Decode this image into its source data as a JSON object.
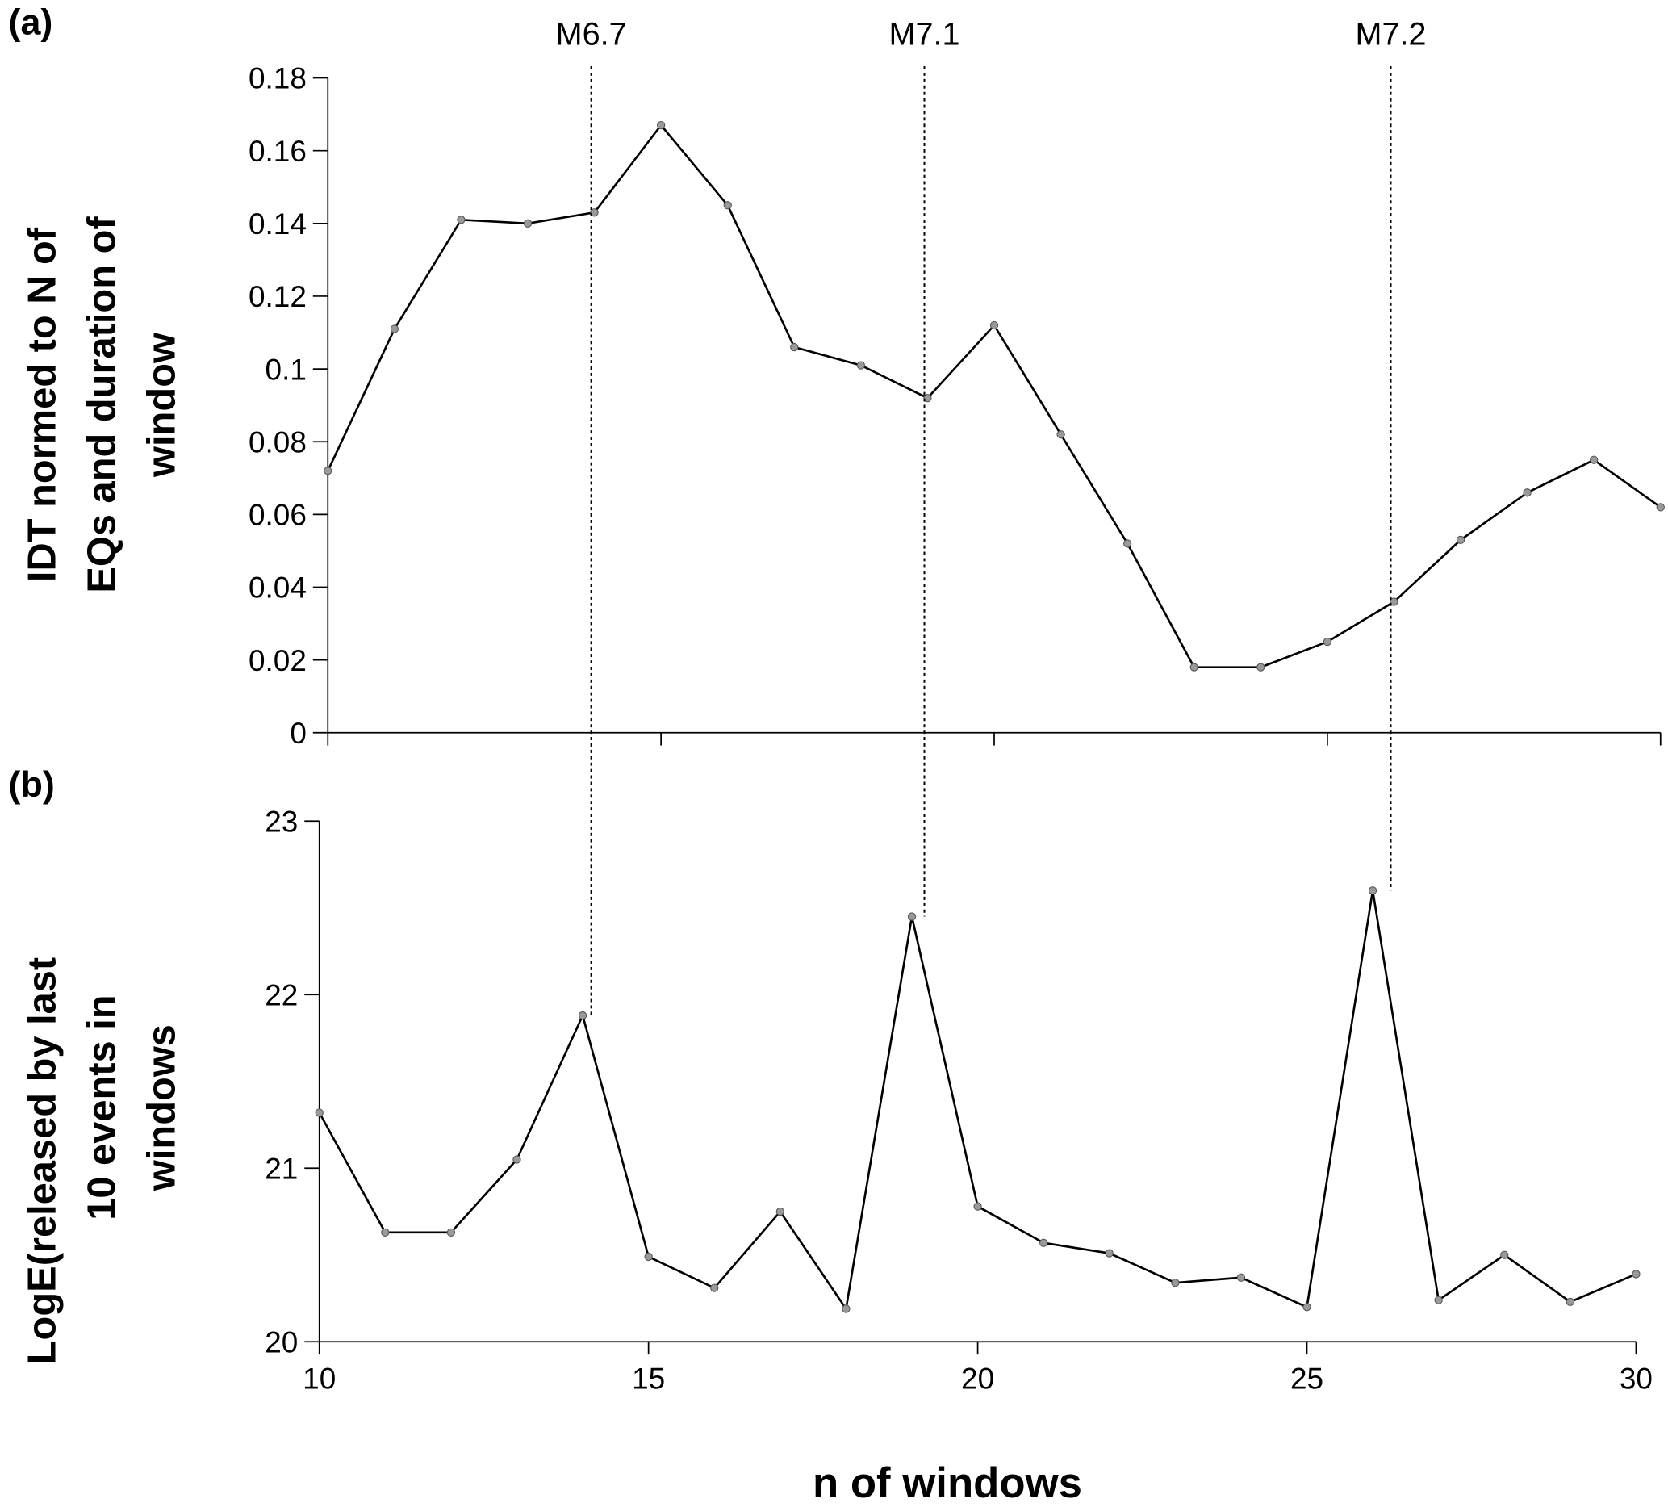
{
  "chart_data": [
    {
      "type": "line",
      "panel_label": "(a)",
      "ylabel_lines": [
        "IDT normed to N of",
        "EQs and duration of",
        "window"
      ],
      "xlabel": "",
      "x": [
        10,
        11,
        12,
        13,
        14,
        15,
        16,
        17,
        18,
        19,
        20,
        21,
        22,
        23,
        24,
        25,
        26,
        27,
        28,
        29,
        30
      ],
      "values": [
        0.072,
        0.111,
        0.141,
        0.14,
        0.143,
        0.167,
        0.145,
        0.106,
        0.101,
        0.092,
        0.112,
        0.082,
        0.052,
        0.018,
        0.018,
        0.025,
        0.036,
        0.053,
        0.066,
        0.075,
        0.062
      ],
      "xlim": [
        10,
        30
      ],
      "ylim": [
        0,
        0.18
      ],
      "yticks": [
        "0",
        "0.02",
        "0.04",
        "0.06",
        "0.08",
        "0.1",
        "0.12",
        "0.14",
        "0.16",
        "0.18"
      ],
      "xticks": [
        10,
        15,
        20,
        25,
        30
      ],
      "grid": false,
      "line_color": "#000000",
      "marker_color": "#999999"
    },
    {
      "type": "line",
      "panel_label": "(b)",
      "ylabel_lines": [
        "LogE(released by last",
        "10 events in",
        "windows"
      ],
      "xlabel": "n of windows",
      "x": [
        10,
        11,
        12,
        13,
        14,
        15,
        16,
        17,
        18,
        19,
        20,
        21,
        22,
        23,
        24,
        25,
        26,
        27,
        28,
        29,
        30
      ],
      "values": [
        21.32,
        20.63,
        20.63,
        21.05,
        21.88,
        20.49,
        20.31,
        20.75,
        20.19,
        22.45,
        20.78,
        20.57,
        20.51,
        20.34,
        20.37,
        20.2,
        22.6,
        20.24,
        20.5,
        20.23,
        20.39
      ],
      "xlim": [
        10,
        30
      ],
      "ylim": [
        20,
        23
      ],
      "yticks": [
        "20",
        "21",
        "22",
        "23"
      ],
      "xticks": [
        "10",
        "15",
        "20",
        "25",
        "30"
      ],
      "grid": false,
      "line_color": "#000000",
      "marker_color": "#999999"
    }
  ],
  "annotations": [
    {
      "label": "M6.7",
      "x": 14
    },
    {
      "label": "M7.1",
      "x": 19
    },
    {
      "label": "M7.2",
      "x": 26
    }
  ]
}
